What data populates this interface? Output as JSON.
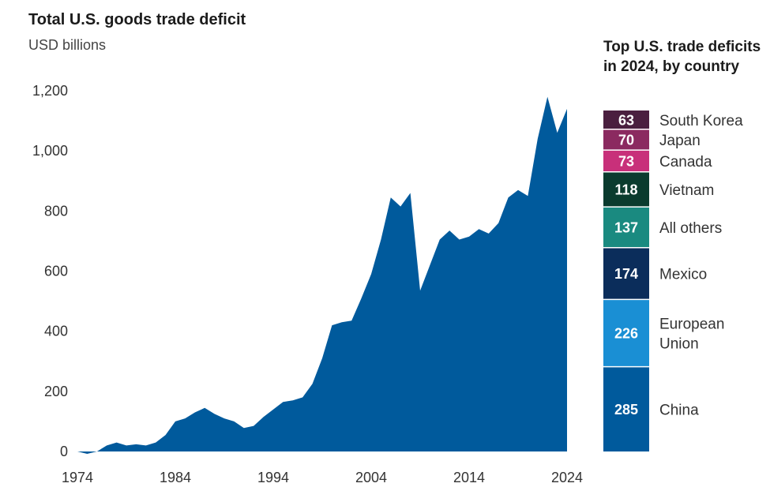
{
  "title": "Total U.S. goods trade deficit",
  "subtitle": "USD billions",
  "colors": {
    "area": "#005a9c"
  },
  "chart_data": [
    {
      "type": "area",
      "title": "Total U.S. goods trade deficit",
      "ylabel": "USD billions",
      "ylim": [
        0,
        1200
      ],
      "xlim": [
        1974,
        2024
      ],
      "yticks": [
        0,
        200,
        400,
        600,
        800,
        1000,
        1200
      ],
      "yticklabels": [
        "0",
        "200",
        "400",
        "600",
        "800",
        "1,000",
        "1,200"
      ],
      "xticks": [
        1974,
        1984,
        1994,
        2004,
        2014,
        2024
      ],
      "xticklabels": [
        "1974",
        "1984",
        "1994",
        "2004",
        "2014",
        "2024"
      ],
      "grid": false,
      "x": [
        1974,
        1975,
        1976,
        1977,
        1978,
        1979,
        1980,
        1981,
        1982,
        1983,
        1984,
        1985,
        1986,
        1987,
        1988,
        1989,
        1990,
        1991,
        1992,
        1993,
        1994,
        1995,
        1996,
        1997,
        1998,
        1999,
        2000,
        2001,
        2002,
        2003,
        2004,
        2005,
        2006,
        2007,
        2008,
        2009,
        2010,
        2011,
        2012,
        2013,
        2014,
        2015,
        2016,
        2017,
        2018,
        2019,
        2020,
        2021,
        2022,
        2023,
        2024
      ],
      "values": [
        0,
        -8,
        0,
        20,
        30,
        20,
        24,
        20,
        30,
        55,
        100,
        110,
        130,
        145,
        125,
        110,
        100,
        78,
        85,
        115,
        140,
        165,
        170,
        180,
        225,
        310,
        420,
        430,
        435,
        510,
        590,
        705,
        845,
        815,
        860,
        535,
        620,
        705,
        735,
        705,
        715,
        740,
        725,
        760,
        845,
        870,
        850,
        1040,
        1180,
        1060,
        1140
      ]
    },
    {
      "type": "bar",
      "title": "Top U.S. trade deficits in 2024, by country",
      "stacked": true,
      "categories": [
        "China",
        "European Union",
        "Mexico",
        "All others",
        "Vietnam",
        "Canada",
        "Japan",
        "South Korea"
      ],
      "values": [
        285,
        226,
        174,
        137,
        118,
        73,
        70,
        63
      ],
      "colors": [
        "#005a9c",
        "#1a8fd4",
        "#0b2d5b",
        "#1a8a80",
        "#0a3b2e",
        "#c8307a",
        "#8b2a60",
        "#4a1f3f"
      ]
    }
  ]
}
